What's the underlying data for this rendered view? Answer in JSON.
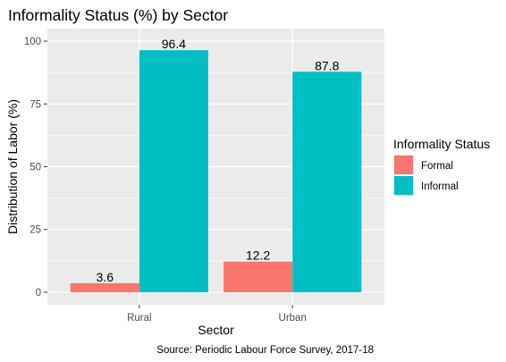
{
  "chart_data": {
    "type": "bar",
    "title": "Informality Status (%) by Sector",
    "xlabel": "Sector",
    "ylabel": "Distribution of Labor (%)",
    "categories": [
      "Rural",
      "Urban"
    ],
    "series": [
      {
        "name": "Formal",
        "values": [
          3.6,
          12.2
        ],
        "color": "#F8766D"
      },
      {
        "name": "Informal",
        "values": [
          96.4,
          87.8
        ],
        "color": "#00BFC4"
      }
    ],
    "data_labels": [
      [
        "3.6",
        "12.2"
      ],
      [
        "96.4",
        "87.8"
      ]
    ],
    "y_ticks": [
      0,
      25,
      50,
      75,
      100
    ],
    "y_tick_labels": [
      "0",
      "25",
      "50",
      "75",
      "100"
    ],
    "ylim": [
      -5,
      105
    ],
    "grid": true,
    "legend": {
      "title": "Informality Status",
      "position": "right"
    },
    "caption": "Source: Periodic Labour Force Survey, 2017-18",
    "colors": {
      "panel": "#EBEBEB",
      "grid": "#FFFFFF"
    }
  }
}
